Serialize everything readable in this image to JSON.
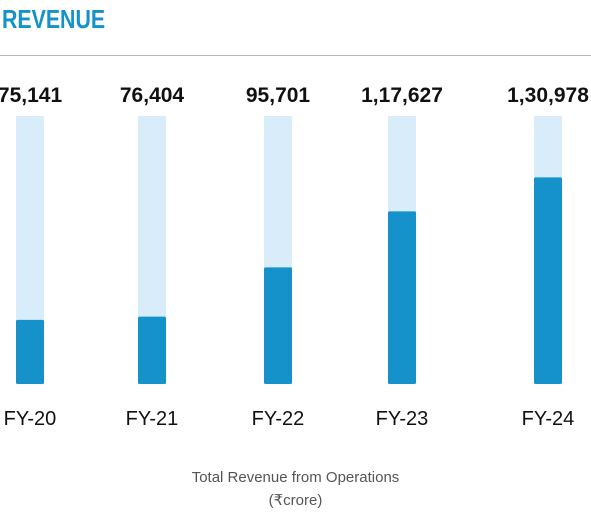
{
  "chart_data": {
    "type": "bar",
    "title": "REVENUE",
    "categories": [
      "FY-20",
      "FY-21",
      "FY-22",
      "FY-23",
      "FY-24"
    ],
    "values": [
      75141,
      76404,
      95701,
      117627,
      130978
    ],
    "value_labels": [
      "75,141",
      "76,404",
      "95,701",
      "1,17,627",
      "1,30,978"
    ],
    "ylim": [
      50000,
      155000
    ],
    "caption": "Total Revenue from Operations",
    "unit": "(₹crore)",
    "grid": false,
    "legend": "none",
    "colors": {
      "bar": "#1492c9",
      "track": "#d9ecfa",
      "title": "#1492c9",
      "text": "#111111"
    }
  }
}
